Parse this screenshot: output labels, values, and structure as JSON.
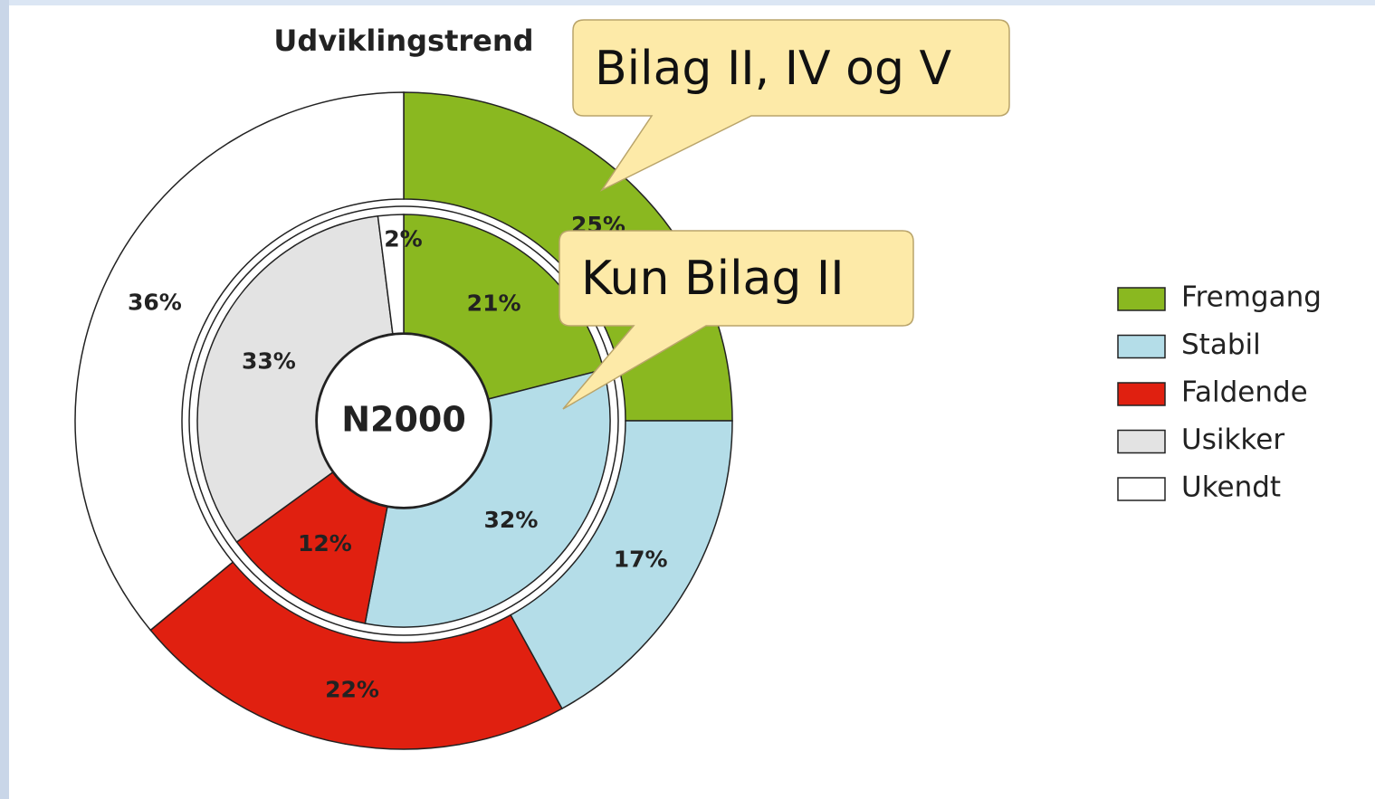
{
  "chart_data": {
    "type": "donut",
    "title": "Udviklingstrend",
    "center_label": "N2000",
    "categories": [
      "Fremgang",
      "Stabil",
      "Faldende",
      "Usikker",
      "Ukendt"
    ],
    "colors": [
      "#8ab820",
      "#b4dde8",
      "#e02010",
      "#e3e3e3",
      "#ffffff"
    ],
    "series": [
      {
        "name": "Bilag II, IV og V",
        "values": [
          25,
          17,
          22,
          0,
          36
        ],
        "value_labels": [
          "25%",
          "17%",
          "22%",
          null,
          "36%"
        ]
      },
      {
        "name": "Kun Bilag II",
        "values": [
          21,
          32,
          12,
          33,
          2
        ],
        "value_labels": [
          "21%",
          "32%",
          "12%",
          "33%",
          "2%"
        ]
      }
    ],
    "legend": "right"
  }
}
